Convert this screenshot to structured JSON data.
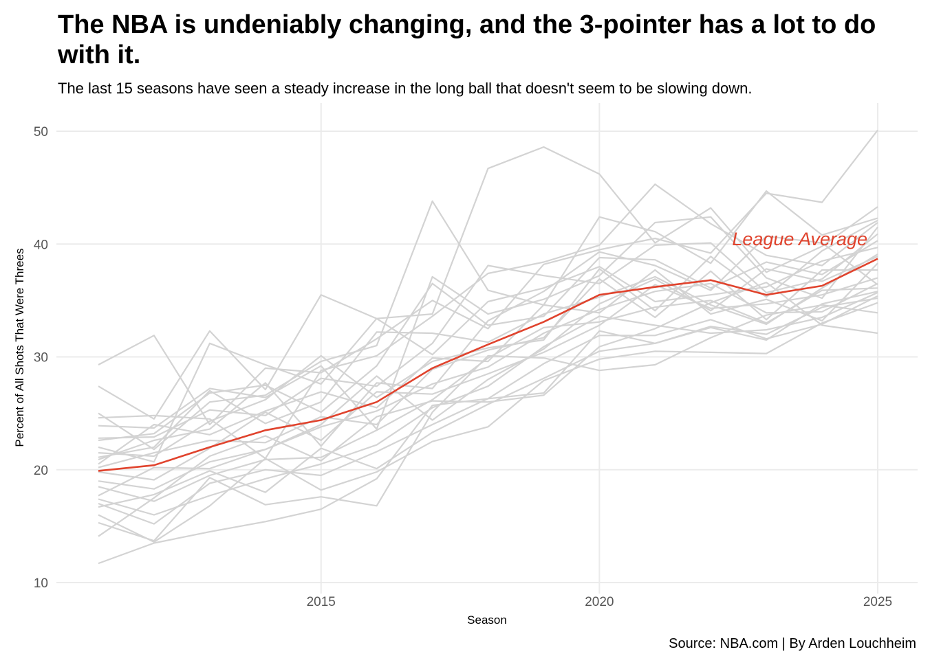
{
  "title": "The NBA is undeniably changing, and the 3-pointer has a lot to do with it.",
  "subtitle": "The last 15 seasons have seen a steady increase in the long ball that doesn't seem to be slowing down.",
  "caption": "Source: NBA.com | By Arden Louchheim",
  "colors": {
    "team": "#d3d3d3",
    "average": "#e0432d",
    "grid": "#ebebeb",
    "tick": "#555555"
  },
  "chart_data": {
    "type": "line",
    "title": "The NBA is undeniably changing, and the 3-pointer has a lot to do with it.",
    "subtitle": "The last 15 seasons have seen a steady increase in the long ball that doesn't seem to be slowing down.",
    "xlabel": "Season",
    "ylabel": "Percent of All Shots That Were Threes",
    "xlim": [
      2011,
      2025
    ],
    "ylim": [
      10,
      50
    ],
    "x_ticks": [
      2015,
      2020,
      2025
    ],
    "y_ticks": [
      10,
      20,
      30,
      40,
      50
    ],
    "grid": true,
    "legend": "none",
    "x": [
      2011,
      2012,
      2013,
      2014,
      2015,
      2016,
      2017,
      2018,
      2019,
      2020,
      2021,
      2022,
      2023,
      2024,
      2025
    ],
    "annotation": {
      "text": "League Average",
      "x": 2023.6,
      "y": 40.5
    },
    "highlight": {
      "name": "League Average",
      "values": [
        19.9,
        20.4,
        22.0,
        23.5,
        24.4,
        26.0,
        29.0,
        31.1,
        33.1,
        35.5,
        36.2,
        36.8,
        35.5,
        36.3,
        38.7
      ]
    },
    "series": [
      {
        "values": [
          29.3,
          31.9,
          24.0,
          29.0,
          28.6,
          31.6,
          35.0,
          32.5,
          38.2,
          39.5,
          40.5,
          39.2,
          44.5,
          43.7,
          50.1
        ]
      },
      {
        "values": [
          27.4,
          24.5,
          32.3,
          27.1,
          35.5,
          33.4,
          33.8,
          46.7,
          48.6,
          46.2,
          40.1,
          43.2,
          37.5,
          39.8,
          43.3
        ]
      },
      {
        "values": [
          25.0,
          21.8,
          26.0,
          26.6,
          29.6,
          31.0,
          43.8,
          35.9,
          34.6,
          42.4,
          41.1,
          38.3,
          44.7,
          40.8,
          42.3
        ]
      },
      {
        "values": [
          24.6,
          24.8,
          24.5,
          21.0,
          28.8,
          30.1,
          33.6,
          37.4,
          38.4,
          39.9,
          45.3,
          41.8,
          39.0,
          38.1,
          41.9
        ]
      },
      {
        "values": [
          23.9,
          23.7,
          27.2,
          26.4,
          29.2,
          23.6,
          37.1,
          33.8,
          35.1,
          37.2,
          41.9,
          42.4,
          37.0,
          35.2,
          41.5
        ]
      },
      {
        "values": [
          22.8,
          22.9,
          25.3,
          24.8,
          28.1,
          27.4,
          31.2,
          38.1,
          37.2,
          36.5,
          39.9,
          40.1,
          35.7,
          36.9,
          40.9
        ]
      },
      {
        "values": [
          22.6,
          23.2,
          26.8,
          27.5,
          25.1,
          29.2,
          36.5,
          32.8,
          33.6,
          38.8,
          38.6,
          36.1,
          38.4,
          37.3,
          40.3
        ]
      },
      {
        "values": [
          22.0,
          20.7,
          31.2,
          29.3,
          27.6,
          33.4,
          30.2,
          34.9,
          36.1,
          38.0,
          34.9,
          35.5,
          36.2,
          38.5,
          39.7
        ]
      },
      {
        "values": [
          21.1,
          22.0,
          27.0,
          24.1,
          26.0,
          32.2,
          32.1,
          31.3,
          33.8,
          35.3,
          37.1,
          34.6,
          32.9,
          36.1,
          39.1
        ]
      },
      {
        "values": [
          20.5,
          24.0,
          23.1,
          25.2,
          26.9,
          25.5,
          29.9,
          29.6,
          34.6,
          33.9,
          37.7,
          33.8,
          35.1,
          33.2,
          38.3
        ]
      },
      {
        "values": [
          20.2,
          21.5,
          22.6,
          22.4,
          24.7,
          24.0,
          28.9,
          30.6,
          31.7,
          36.9,
          33.5,
          37.6,
          33.3,
          37.7,
          37.7
        ]
      },
      {
        "values": [
          19.8,
          19.1,
          21.9,
          25.1,
          22.6,
          26.9,
          26.7,
          28.5,
          30.4,
          32.8,
          36.4,
          34.3,
          34.7,
          35.5,
          37.0
        ]
      },
      {
        "values": [
          19.0,
          18.3,
          20.7,
          21.8,
          23.8,
          25.2,
          27.6,
          29.1,
          32.1,
          34.2,
          35.8,
          36.5,
          33.9,
          34.0,
          36.5
        ]
      },
      {
        "values": [
          18.5,
          17.2,
          19.5,
          20.9,
          21.1,
          23.5,
          26.2,
          29.9,
          32.6,
          33.1,
          34.4,
          35.0,
          33.0,
          35.9,
          36.1
        ]
      },
      {
        "values": [
          17.4,
          16.0,
          17.7,
          19.2,
          20.5,
          22.2,
          25.5,
          27.4,
          30.9,
          33.6,
          32.8,
          32.1,
          32.4,
          33.5,
          35.7
        ]
      },
      {
        "values": [
          17.0,
          15.2,
          18.8,
          20.0,
          19.5,
          21.6,
          24.0,
          26.3,
          29.4,
          31.9,
          31.9,
          33.3,
          31.6,
          32.9,
          35.4
        ]
      },
      {
        "values": [
          16.7,
          17.8,
          19.9,
          18.0,
          21.9,
          20.1,
          23.3,
          25.8,
          28.1,
          30.5,
          31.2,
          32.7,
          32.0,
          34.4,
          35.2
        ]
      },
      {
        "values": [
          16.0,
          13.6,
          16.8,
          21.0,
          18.2,
          19.8,
          22.5,
          23.8,
          27.9,
          29.8,
          30.5,
          30.4,
          30.3,
          33.0,
          34.8
        ]
      },
      {
        "values": [
          15.3,
          13.7,
          19.3,
          16.9,
          17.6,
          16.8,
          25.1,
          30.1,
          29.9,
          28.8,
          29.3,
          31.7,
          33.7,
          34.6,
          33.9
        ]
      },
      {
        "values": [
          14.1,
          17.5,
          21.2,
          23.0,
          20.8,
          24.7,
          26.1,
          26.0,
          26.6,
          30.9,
          32.5,
          34.8,
          36.6,
          32.8,
          32.1
        ]
      },
      {
        "values": [
          11.7,
          13.5,
          14.5,
          15.4,
          16.5,
          19.2,
          25.7,
          26.3,
          26.8,
          32.3,
          31.2,
          32.6,
          31.5,
          34.7,
          35.8
        ]
      },
      {
        "values": [
          20.9,
          22.6,
          23.6,
          27.7,
          22.1,
          27.7,
          27.2,
          33.2,
          35.8,
          39.3,
          38.1,
          35.9,
          40.7,
          40.1,
          36.4
        ]
      },
      {
        "values": [
          21.5,
          21.2,
          24.3,
          26.2,
          30.1,
          26.4,
          29.6,
          30.8,
          31.5,
          37.8,
          34.1,
          38.9,
          35.3,
          39.4,
          42.1
        ]
      },
      {
        "values": [
          17.7,
          20.2,
          20.1,
          21.8,
          24.0,
          28.3,
          24.4,
          28.0,
          30.7,
          34.7,
          36.9,
          34.1,
          37.8,
          36.7,
          38.9
        ]
      }
    ]
  }
}
